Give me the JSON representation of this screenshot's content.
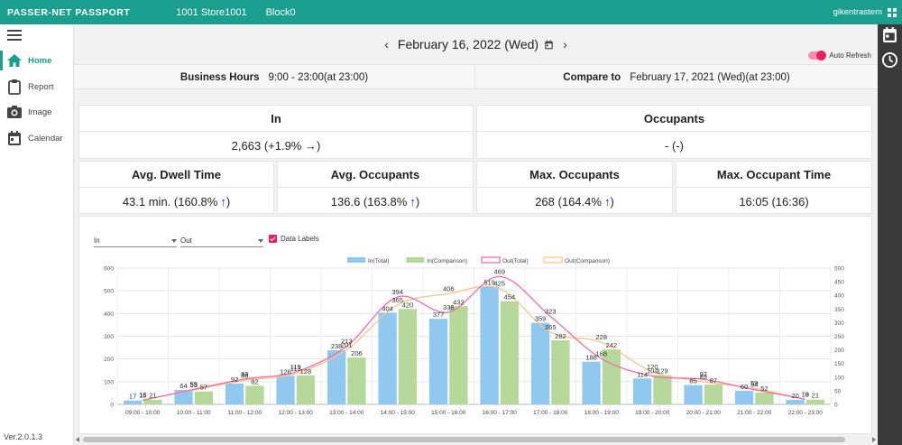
{
  "header": {
    "brand": "PASSER-NET PASSPORT",
    "store": "1001 Store1001",
    "block": "Block0",
    "user": "gikentrastem"
  },
  "sidebar": {
    "items": [
      {
        "label": "Home",
        "icon": "home-icon",
        "active": true
      },
      {
        "label": "Report",
        "icon": "clipboard-icon"
      },
      {
        "label": "Image",
        "icon": "camera-icon"
      },
      {
        "label": "Calendar",
        "icon": "calendar-icon"
      }
    ],
    "version": "Ver.2.0.1.3"
  },
  "datebar": {
    "date": "February 16, 2022 (Wed)",
    "prev_arrow": "‹",
    "next_arrow": "›",
    "auto_refresh_label": "Auto Refresh",
    "auto_refresh_on": true
  },
  "info": {
    "business_hours_label": "Business Hours",
    "business_hours_value": "9:00 - 23:00(at 23:00)",
    "compare_label": "Compare to",
    "compare_value": "February 17, 2021 (Wed)(at 23:00)"
  },
  "stats": {
    "in_title": "In",
    "in_value": "2,663 (+1.9% →)",
    "occupants_title": "Occupants",
    "occupants_value": "- (-)",
    "dwell_title": "Avg. Dwell Time",
    "dwell_value": "43.1 min. (160.8%",
    "avg_occ_title": "Avg. Occupants",
    "avg_occ_value": "136.6 (163.8%",
    "max_occ_title": "Max. Occupants",
    "max_occ_value": "268 (164.4%",
    "max_time_title": "Max. Occupant Time",
    "max_time_value": "16:05 (16:36)",
    "up_arrow": "↑",
    "close_paren": ")"
  },
  "controls": {
    "select1_value": "In",
    "select2_value": "Out",
    "data_labels": "Data Labels",
    "data_labels_checked": true
  },
  "colors": {
    "accent": "#1a9e8e",
    "in_total": "#90c8f0",
    "in_comparison": "#b6d89a",
    "out_total": "#f06ea8",
    "out_comparison": "#f5c58e"
  },
  "chart_data": {
    "type": "bar",
    "categories": [
      "09:00 - 10:00",
      "10:00 - 11:00",
      "11:00 - 12:00",
      "12:00 - 13:00",
      "13:00 - 14:00",
      "14:00 - 15:00",
      "15:00 - 16:00",
      "16:00 - 17:00",
      "17:00 - 18:00",
      "18:00 - 19:00",
      "19:00 - 20:00",
      "20:00 - 21:00",
      "21:00 - 22:00",
      "22:00 - 23:00"
    ],
    "y_left": {
      "min": 0,
      "max": 600,
      "ticks": [
        0,
        100,
        200,
        300,
        400,
        500,
        600
      ]
    },
    "y_right": {
      "min": 0,
      "max": 500,
      "ticks": [
        0,
        50,
        100,
        150,
        200,
        250,
        300,
        350,
        400,
        450,
        500
      ]
    },
    "series": [
      {
        "name": "In(Total)",
        "kind": "bar",
        "axis": "left",
        "values": [
          17,
          64,
          92,
          126,
          238,
          404,
          377,
          519,
          359,
          188,
          114,
          85,
          60,
          20
        ]
      },
      {
        "name": "In(Comparison)",
        "kind": "bar",
        "axis": "left",
        "values": [
          21,
          57,
          82,
          128,
          206,
          420,
          432,
          454,
          282,
          242,
          129,
          87,
          52,
          21
        ]
      },
      {
        "name": "Out(Total)",
        "kind": "line",
        "axis": "right",
        "values": [
          15,
          55,
          93,
          119,
          213,
          394,
          338,
          469,
          323,
          168,
          104,
          92,
          54,
          19
        ]
      },
      {
        "name": "Out(Comparison)",
        "kind": "line",
        "axis": "right",
        "values": [
          16,
          53,
          88,
          113,
          201,
          365,
          406,
          425,
          265,
          228,
          120,
          83,
          59,
          18
        ]
      }
    ],
    "legend_position": "top",
    "data_labels": true,
    "grid": true
  }
}
